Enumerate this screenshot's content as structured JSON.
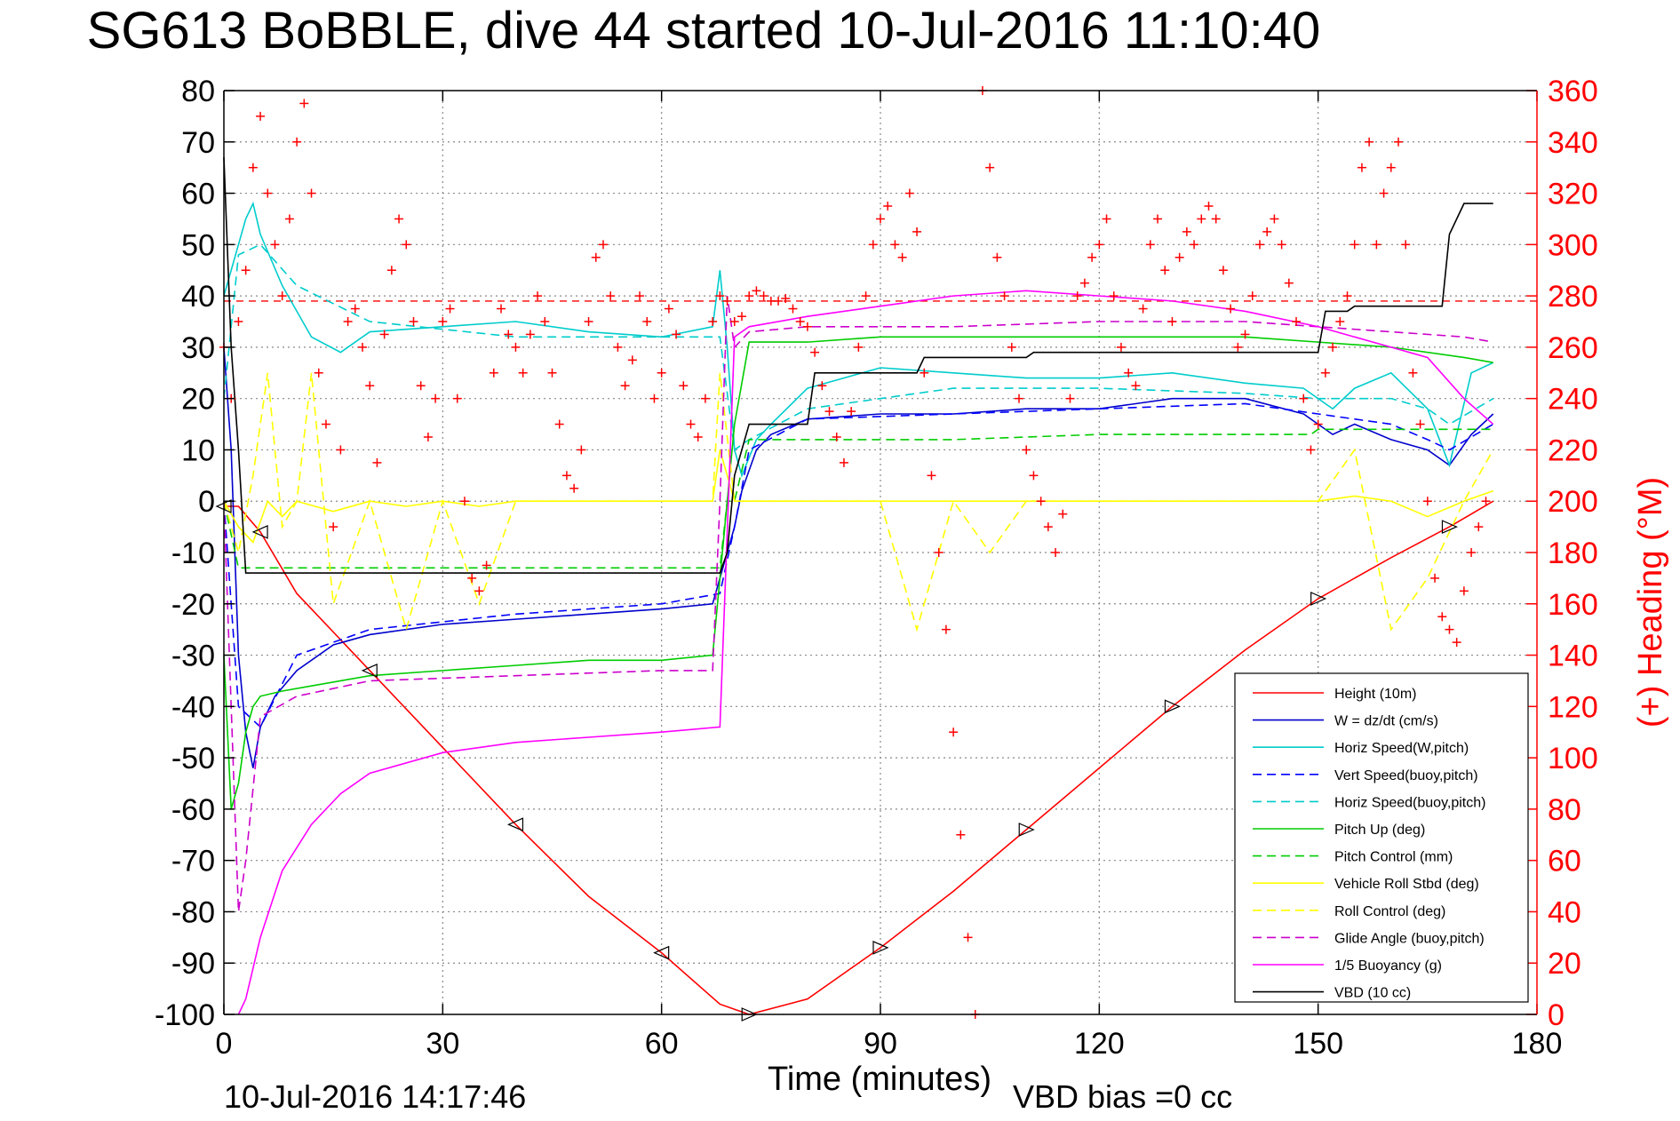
{
  "chart_data": {
    "type": "line",
    "title": "SG613 BoBBLE, dive 44 started 10-Jul-2016 11:10:40",
    "xlabel": "Time (minutes)",
    "ylabel": "",
    "y2label": "(+) Heading (°M)",
    "xlim": [
      0,
      180
    ],
    "ylim": [
      -100,
      80
    ],
    "y2lim": [
      0,
      360
    ],
    "x_ticks": [
      "0",
      "30",
      "60",
      "90",
      "120",
      "150",
      "180"
    ],
    "y_ticks": [
      "80",
      "70",
      "60",
      "50",
      "40",
      "30",
      "20",
      "10",
      "0",
      "-10",
      "-20",
      "-30",
      "-40",
      "-50",
      "-60",
      "-70",
      "-80",
      "-90",
      "-100"
    ],
    "y2_ticks": [
      "360",
      "340",
      "320",
      "300",
      "280",
      "260",
      "240",
      "220",
      "200",
      "180",
      "160",
      "140",
      "120",
      "100",
      "80",
      "60",
      "40",
      "20",
      "0"
    ],
    "grid": true,
    "legend_position": "bottom-right",
    "footer_left": "10-Jul-2016 14:17:46",
    "footer_right": "VBD bias =0 cc",
    "series": [
      {
        "name": "Height (10m)",
        "color": "#ff0000",
        "dash": "solid",
        "x": [
          0,
          2,
          5,
          10,
          20,
          30,
          40,
          50,
          60,
          68,
          72,
          80,
          90,
          100,
          110,
          120,
          130,
          140,
          150,
          160,
          168,
          174
        ],
        "y": [
          -1,
          -1,
          -6,
          -18,
          -33,
          -48,
          -63,
          -77,
          -88,
          -98,
          -100,
          -97,
          -87,
          -76,
          -64,
          -52,
          -40,
          -29,
          -19,
          -11,
          -5,
          0
        ]
      },
      {
        "name": "W = dz/dt (cm/s)",
        "color": "#0000cc",
        "dash": "solid",
        "x": [
          0,
          1,
          2,
          3,
          4,
          5,
          7,
          10,
          15,
          20,
          30,
          40,
          50,
          60,
          67,
          68,
          70,
          71,
          73,
          75,
          80,
          90,
          100,
          110,
          120,
          130,
          140,
          148,
          152,
          155,
          160,
          165,
          168,
          171,
          174
        ],
        "y": [
          30,
          10,
          -30,
          -45,
          -52,
          -44,
          -38,
          -33,
          -28,
          -26,
          -24,
          -23,
          -22,
          -21,
          -20,
          -15,
          -5,
          2,
          10,
          13,
          16,
          17,
          17,
          18,
          18,
          20,
          20,
          17,
          13,
          15,
          12,
          10,
          7,
          13,
          17
        ]
      },
      {
        "name": "Horiz Speed(W,pitch)",
        "color": "#00cccc",
        "dash": "solid",
        "x": [
          0,
          1,
          2,
          3,
          4,
          5,
          8,
          12,
          16,
          20,
          30,
          40,
          50,
          60,
          67,
          68,
          69,
          70,
          71,
          73,
          75,
          80,
          90,
          100,
          110,
          120,
          130,
          140,
          148,
          152,
          155,
          160,
          165,
          168,
          171,
          174
        ],
        "y": [
          40,
          45,
          50,
          55,
          58,
          52,
          42,
          32,
          29,
          33,
          34,
          35,
          33,
          32,
          34,
          45,
          30,
          10,
          5,
          12,
          15,
          22,
          26,
          25,
          24,
          24,
          25,
          23,
          22,
          18,
          22,
          25,
          18,
          7,
          25,
          27
        ]
      },
      {
        "name": "Vert Speed(buoy,pitch)",
        "color": "#0000ff",
        "dash": "dashed",
        "x": [
          0,
          2,
          5,
          10,
          20,
          40,
          60,
          68,
          70,
          72,
          80,
          100,
          120,
          140,
          150,
          160,
          165,
          168,
          174
        ],
        "y": [
          0,
          -40,
          -44,
          -30,
          -25,
          -22,
          -20,
          -18,
          -5,
          10,
          16,
          17,
          18,
          19,
          17,
          15,
          12,
          10,
          15
        ]
      },
      {
        "name": "Horiz Speed(buoy,pitch)",
        "color": "#00cccc",
        "dash": "dashed",
        "x": [
          0,
          2,
          5,
          10,
          20,
          40,
          60,
          68,
          70,
          72,
          80,
          100,
          120,
          140,
          150,
          160,
          165,
          168,
          174
        ],
        "y": [
          20,
          48,
          50,
          42,
          35,
          32,
          32,
          32,
          10,
          12,
          18,
          22,
          22,
          21,
          20,
          20,
          18,
          15,
          20
        ]
      },
      {
        "name": "Pitch Up (deg)",
        "color": "#00cc00",
        "dash": "solid",
        "x": [
          0,
          1,
          2,
          3,
          4,
          5,
          8,
          12,
          16,
          20,
          30,
          40,
          50,
          60,
          67,
          68,
          69,
          70,
          72,
          80,
          90,
          100,
          110,
          120,
          130,
          140,
          150,
          160,
          170,
          174
        ],
        "y": [
          -30,
          -60,
          -55,
          -45,
          -40,
          -38,
          -37,
          -36,
          -35,
          -34,
          -33,
          -32,
          -31,
          -31,
          -30,
          -15,
          0,
          15,
          31,
          31,
          32,
          32,
          32,
          32,
          32,
          32,
          31,
          30,
          28,
          27
        ]
      },
      {
        "name": "Pitch Control (mm)",
        "color": "#00cc00",
        "dash": "dashed",
        "x": [
          0,
          2,
          3,
          68,
          69,
          70,
          72,
          80,
          81,
          100,
          120,
          140,
          149,
          150,
          174
        ],
        "y": [
          0,
          -13,
          -13,
          -13,
          0,
          0,
          12,
          12,
          12,
          12,
          13,
          13,
          13,
          14,
          14
        ]
      },
      {
        "name": "Vehicle Roll Stbd (deg)",
        "color": "#ffff00",
        "dash": "solid",
        "x": [
          0,
          2,
          4,
          6,
          8,
          10,
          15,
          20,
          25,
          30,
          35,
          40,
          50,
          60,
          67,
          68,
          70,
          72,
          80,
          90,
          100,
          110,
          120,
          130,
          140,
          150,
          155,
          160,
          165,
          170,
          174
        ],
        "y": [
          0,
          -5,
          -8,
          0,
          -3,
          0,
          -2,
          0,
          -1,
          0,
          -1,
          0,
          0,
          0,
          0,
          10,
          0,
          0,
          0,
          0,
          0,
          0,
          0,
          0,
          0,
          0,
          1,
          0,
          -3,
          0,
          2
        ]
      },
      {
        "name": "Roll Control (deg)",
        "color": "#ffff00",
        "dash": "dashed",
        "x": [
          0,
          2,
          4,
          6,
          8,
          10,
          12,
          15,
          20,
          25,
          30,
          35,
          40,
          50,
          60,
          67,
          68,
          70,
          72,
          80,
          90,
          95,
          100,
          105,
          110,
          120,
          130,
          140,
          150,
          155,
          160,
          165,
          170,
          174
        ],
        "y": [
          0,
          -10,
          5,
          25,
          -5,
          0,
          25,
          -20,
          0,
          -25,
          0,
          -20,
          0,
          0,
          0,
          0,
          25,
          0,
          0,
          0,
          0,
          -25,
          0,
          -10,
          0,
          0,
          0,
          0,
          0,
          10,
          -25,
          -15,
          0,
          10
        ]
      },
      {
        "name": "Glide Angle (buoy,pitch)",
        "color": "#cc00cc",
        "dash": "dashed",
        "x": [
          0,
          2,
          3,
          5,
          10,
          20,
          40,
          60,
          67,
          68,
          69,
          70,
          72,
          80,
          100,
          120,
          140,
          150,
          160,
          170,
          174
        ],
        "y": [
          0,
          -80,
          -70,
          -42,
          -38,
          -35,
          -34,
          -33,
          -33,
          0,
          40,
          30,
          33,
          34,
          34,
          35,
          35,
          34,
          33,
          32,
          31
        ]
      },
      {
        "name": "1/5 Buoyancy (g)",
        "color": "#ff00ff",
        "dash": "solid",
        "x": [
          2,
          3,
          5,
          8,
          12,
          16,
          20,
          30,
          40,
          50,
          60,
          68,
          70,
          72,
          80,
          90,
          100,
          110,
          120,
          130,
          140,
          150,
          160,
          165,
          170,
          174
        ],
        "y": [
          -100,
          -97,
          -85,
          -72,
          -63,
          -57,
          -53,
          -49,
          -47,
          -46,
          -45,
          -44,
          32,
          34,
          36,
          38,
          40,
          41,
          40,
          39,
          37,
          34,
          30,
          28,
          20,
          15
        ]
      },
      {
        "name": "VBD (10 cc)",
        "color": "#000000",
        "dash": "solid",
        "x": [
          0,
          1,
          2,
          3,
          68,
          69,
          70,
          72,
          80,
          81,
          95,
          96,
          110,
          111,
          150,
          151,
          154,
          155,
          167,
          168,
          170,
          174
        ],
        "y": [
          67,
          30,
          10,
          -14,
          -14,
          -10,
          5,
          15,
          15,
          25,
          25,
          28,
          28,
          29,
          29,
          37,
          37,
          38,
          38,
          52,
          58,
          58
        ]
      }
    ],
    "heading_target_deg": 278,
    "heading": {
      "name": "Heading (°M)",
      "color": "#ff0000",
      "marker": "+",
      "x": [
        0,
        1,
        2,
        3,
        4,
        5,
        6,
        7,
        8,
        9,
        10,
        11,
        12,
        13,
        14,
        15,
        16,
        17,
        18,
        19,
        20,
        21,
        22,
        23,
        24,
        25,
        26,
        27,
        28,
        29,
        30,
        31,
        32,
        33,
        34,
        35,
        36,
        37,
        38,
        39,
        40,
        41,
        42,
        43,
        44,
        45,
        46,
        47,
        48,
        49,
        50,
        51,
        52,
        53,
        54,
        55,
        56,
        57,
        58,
        59,
        60,
        61,
        62,
        63,
        64,
        65,
        66,
        67,
        68,
        69,
        70,
        71,
        72,
        73,
        74,
        75,
        76,
        77,
        78,
        79,
        80,
        81,
        82,
        83,
        84,
        85,
        86,
        87,
        88,
        89,
        90,
        91,
        92,
        93,
        94,
        95,
        96,
        97,
        98,
        99,
        100,
        101,
        102,
        103,
        104,
        105,
        106,
        107,
        108,
        109,
        110,
        111,
        112,
        113,
        114,
        115,
        116,
        117,
        118,
        119,
        120,
        121,
        122,
        123,
        124,
        125,
        126,
        127,
        128,
        129,
        130,
        131,
        132,
        133,
        134,
        135,
        136,
        137,
        138,
        139,
        140,
        141,
        142,
        143,
        144,
        145,
        146,
        147,
        148,
        149,
        150,
        151,
        152,
        153,
        154,
        155,
        156,
        157,
        158,
        159,
        160,
        161,
        162,
        163,
        164,
        165,
        166,
        167,
        168,
        169,
        170,
        171,
        172,
        173
      ],
      "y": [
        260,
        240,
        270,
        290,
        330,
        350,
        320,
        300,
        280,
        310,
        340,
        355,
        320,
        250,
        230,
        190,
        220,
        270,
        275,
        260,
        245,
        215,
        265,
        290,
        310,
        300,
        270,
        245,
        225,
        240,
        270,
        275,
        240,
        200,
        170,
        165,
        175,
        250,
        275,
        265,
        260,
        250,
        265,
        280,
        270,
        250,
        230,
        210,
        205,
        220,
        270,
        295,
        300,
        280,
        260,
        245,
        255,
        280,
        270,
        240,
        250,
        275,
        265,
        245,
        230,
        225,
        240,
        270,
        280,
        278,
        270,
        272,
        280,
        282,
        280,
        278,
        278,
        279,
        275,
        270,
        268,
        258,
        245,
        235,
        225,
        215,
        235,
        260,
        280,
        300,
        310,
        315,
        300,
        295,
        320,
        305,
        250,
        210,
        180,
        150,
        110,
        70,
        30,
        0,
        360,
        330,
        295,
        280,
        260,
        240,
        220,
        210,
        200,
        190,
        180,
        195,
        240,
        280,
        285,
        295,
        300,
        310,
        280,
        260,
        250,
        245,
        275,
        300,
        310,
        290,
        270,
        295,
        305,
        300,
        310,
        315,
        310,
        290,
        275,
        260,
        265,
        280,
        300,
        305,
        310,
        300,
        285,
        270,
        240,
        220,
        230,
        250,
        260,
        270,
        280,
        300,
        330,
        340,
        300,
        320,
        330,
        340,
        300,
        250,
        230,
        200,
        170,
        155,
        150,
        145,
        165,
        180,
        190,
        200
      ]
    }
  }
}
